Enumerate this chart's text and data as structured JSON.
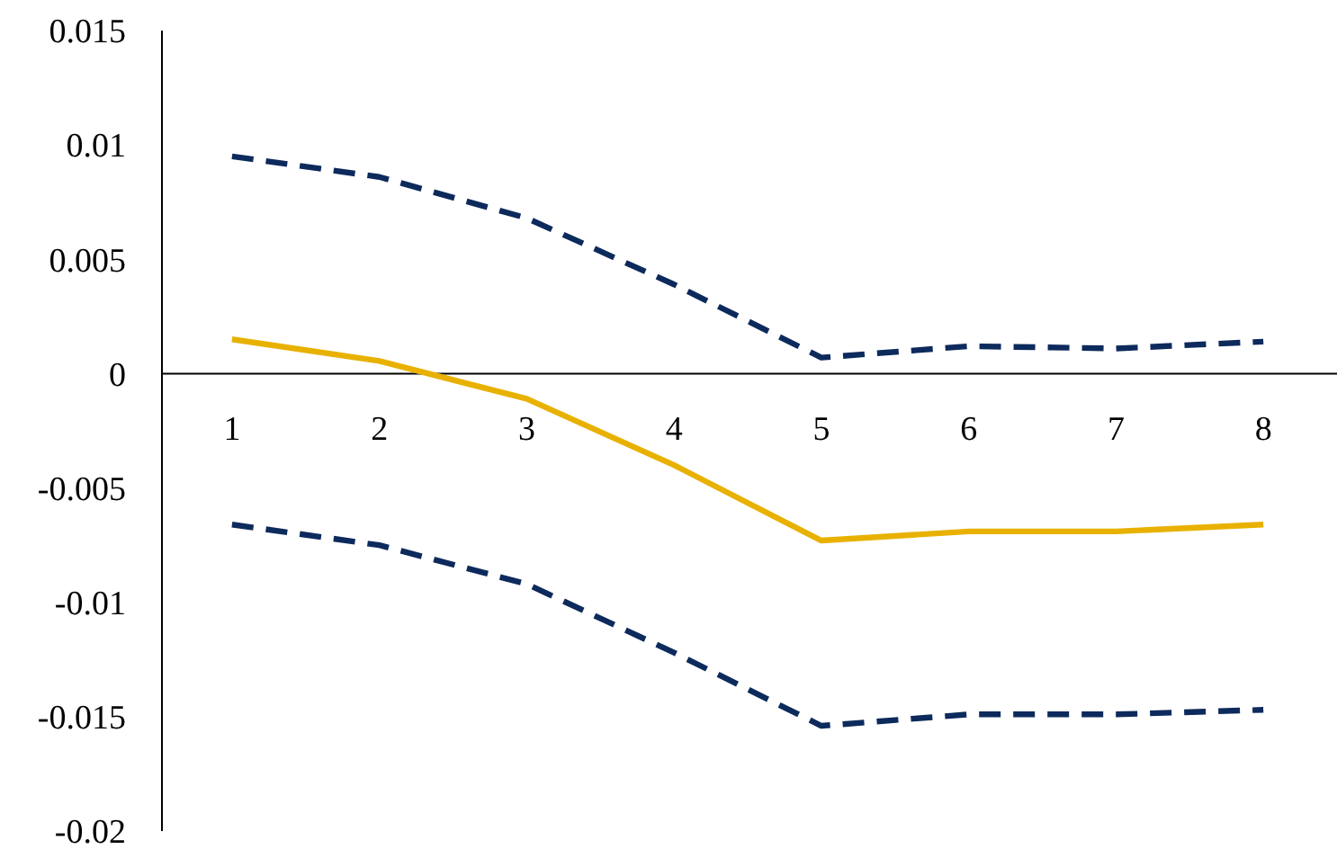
{
  "chart_data": {
    "type": "line",
    "categories": [
      "1",
      "2",
      "3",
      "4",
      "5",
      "6",
      "7",
      "8"
    ],
    "series": [
      {
        "color": "#0d2a5c",
        "line_style": "dashed",
        "values": [
          0.0095,
          0.0086,
          0.0068,
          0.0039,
          0.0007,
          0.0012,
          0.0011,
          0.0014
        ]
      },
      {
        "color": "#e8b100",
        "line_style": "solid",
        "values": [
          0.0015,
          0.00055,
          -0.0011,
          -0.004,
          -0.0073,
          -0.0069,
          -0.0069,
          -0.0066
        ]
      },
      {
        "color": "#0d2a5c",
        "line_style": "dashed",
        "values": [
          -0.0066,
          -0.0075,
          -0.0092,
          -0.0122,
          -0.0154,
          -0.0149,
          -0.0149,
          -0.0147
        ]
      }
    ],
    "ylim": [
      -0.02,
      0.015
    ],
    "yticks": [
      -0.02,
      -0.015,
      -0.01,
      -0.005,
      0,
      0.005,
      0.01,
      0.015
    ],
    "marker": "none"
  }
}
